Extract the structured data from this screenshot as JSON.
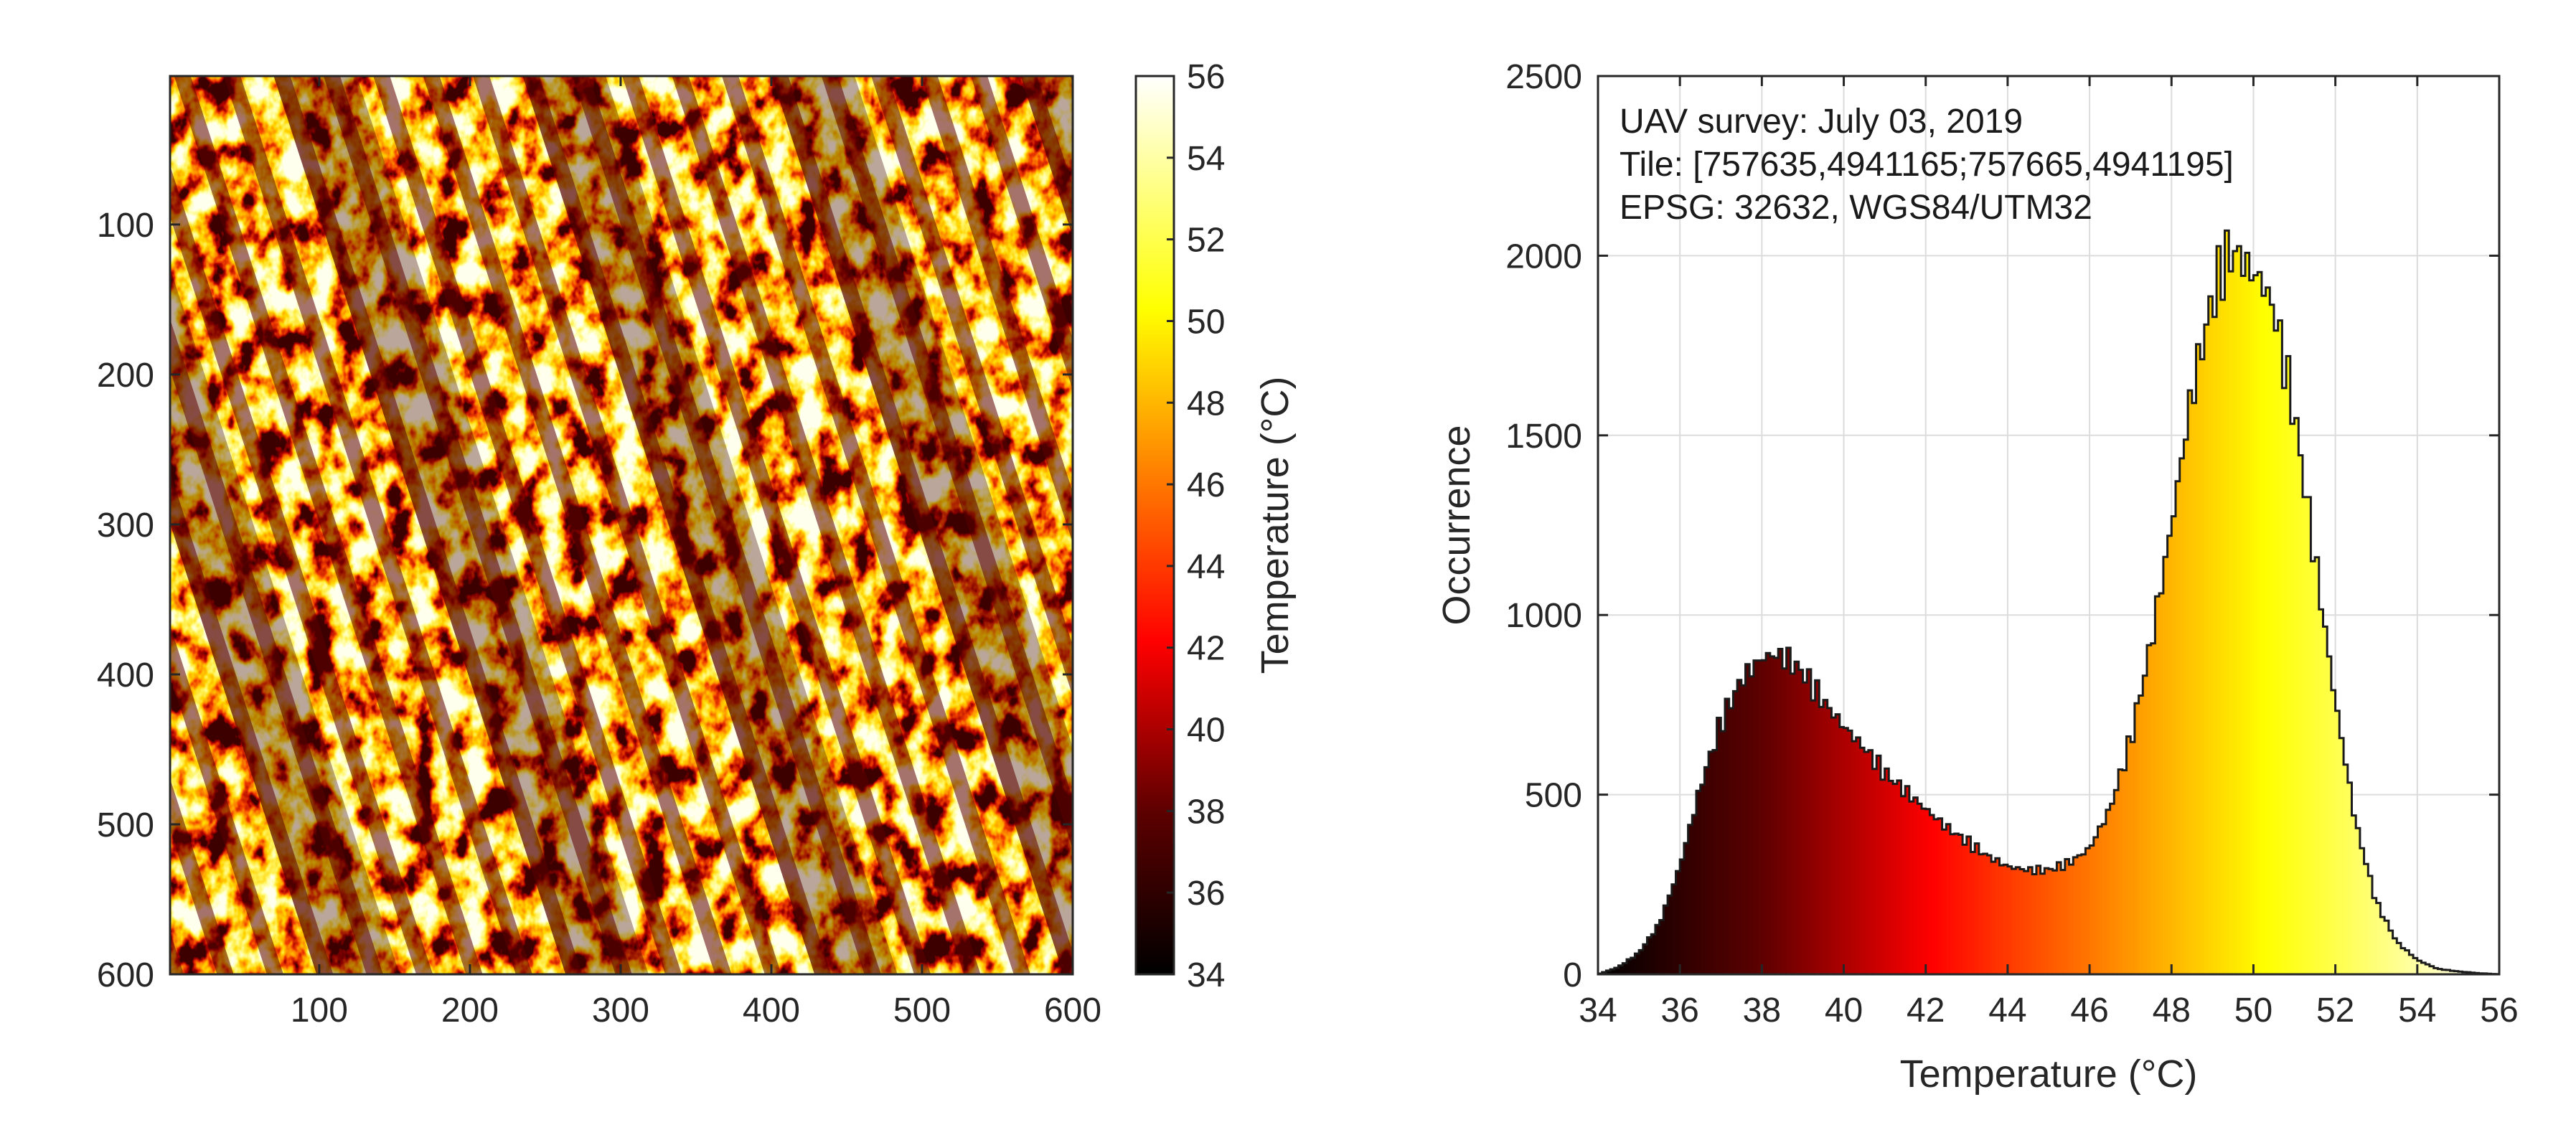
{
  "chart_data": [
    {
      "type": "heatmap",
      "title": "",
      "xlabel": "",
      "ylabel": "",
      "xlim": [
        1,
        600
      ],
      "ylim": [
        1,
        600
      ],
      "x_ticks": [
        "100",
        "200",
        "300",
        "400",
        "500",
        "600"
      ],
      "y_ticks": [
        "100",
        "200",
        "300",
        "400",
        "500",
        "600"
      ],
      "colormap": "hot",
      "colorbar": {
        "label": "Temperature (°C)",
        "range": [
          34,
          56
        ],
        "ticks": [
          "34",
          "36",
          "38",
          "40",
          "42",
          "44",
          "46",
          "48",
          "50",
          "52",
          "54",
          "56"
        ]
      },
      "description_values": {
        "pattern": "diagonal crop rows, warm (yellow) soil strips alternating with cooler (dark red) vegetation",
        "min_temp": 34,
        "max_temp": 56
      }
    },
    {
      "type": "bar",
      "subtype": "histogram",
      "xlabel": "Temperature (°C)",
      "ylabel": "Occurrence",
      "xlim": [
        34,
        56
      ],
      "ylim": [
        0,
        2500
      ],
      "x_ticks": [
        "34",
        "36",
        "38",
        "40",
        "42",
        "44",
        "46",
        "48",
        "50",
        "52",
        "54",
        "56"
      ],
      "y_ticks": [
        "0",
        "500",
        "1000",
        "1500",
        "2000",
        "2500"
      ],
      "grid": true,
      "annotation": [
        "UAV survey: July 03, 2019",
        "Tile: [757635,4941165;757665,4941195]",
        "EPSG: 32632, WGS84/UTM32"
      ],
      "bin_width": 0.1,
      "envelope": {
        "x": [
          34.0,
          34.5,
          35.0,
          35.5,
          36.0,
          36.5,
          37.0,
          37.5,
          38.0,
          38.3,
          38.6,
          39.0,
          39.5,
          40.0,
          40.5,
          41.0,
          41.5,
          42.0,
          42.5,
          43.0,
          43.5,
          44.0,
          44.5,
          45.0,
          45.5,
          46.0,
          46.5,
          47.0,
          47.5,
          48.0,
          48.5,
          49.0,
          49.3,
          49.6,
          49.9,
          50.2,
          50.5,
          51.0,
          51.5,
          52.0,
          52.5,
          53.0,
          53.5,
          54.0,
          54.5,
          55.0,
          55.5,
          56.0
        ],
        "y": [
          0,
          20,
          60,
          140,
          300,
          520,
          700,
          820,
          880,
          890,
          880,
          840,
          760,
          690,
          630,
          560,
          510,
          460,
          410,
          370,
          330,
          300,
          290,
          290,
          310,
          350,
          460,
          650,
          920,
          1250,
          1620,
          1880,
          1990,
          2010,
          1960,
          1930,
          1850,
          1560,
          1160,
          760,
          420,
          200,
          90,
          40,
          15,
          8,
          3,
          0
        ]
      }
    }
  ]
}
